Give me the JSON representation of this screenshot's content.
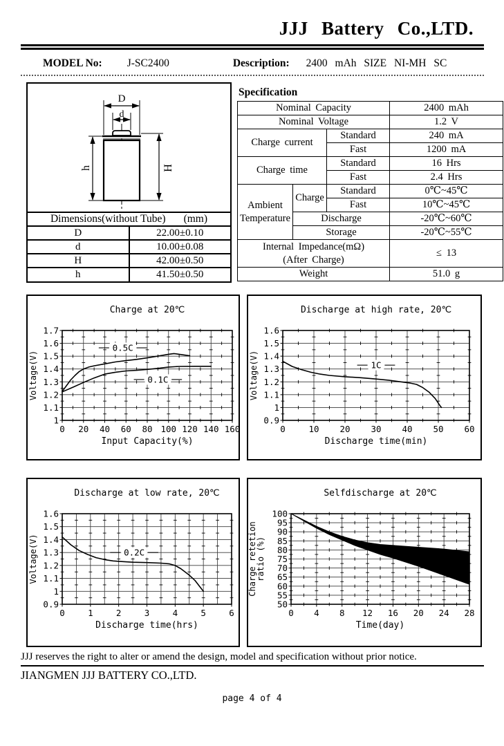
{
  "header": {
    "company": "JJJ Battery Co.,LTD.",
    "model_label": "MODEL No:",
    "model_value": "J-SC2400",
    "description_label": "Description:",
    "description_value": "2400 mAh SIZE NI-MH SC"
  },
  "dimensions": {
    "title": "Dimensions(without Tube)",
    "unit": "(mm)",
    "rows": [
      {
        "label": "D",
        "value": "22.00±0.10"
      },
      {
        "label": "d",
        "value": "10.00±0.08"
      },
      {
        "label": "H",
        "value": "42.00±0.50"
      },
      {
        "label": "h",
        "value": "41.50±0.50"
      }
    ],
    "diagram": {
      "top_diameter_label": "D",
      "button_diameter_label": "d",
      "left_height_label": "h",
      "right_height_label": "H"
    }
  },
  "specification": {
    "title": "Specification",
    "nominal_capacity": {
      "label": "Nominal Capacity",
      "value": "2400 mAh"
    },
    "nominal_voltage": {
      "label": "Nominal Voltage",
      "value": "1.2 V"
    },
    "charge_current": {
      "label": "Charge current",
      "standard_label": "Standard",
      "standard_value": "240 mA",
      "fast_label": "Fast",
      "fast_value": "1200 mA"
    },
    "charge_time": {
      "label": "Charge time",
      "standard_label": "Standard",
      "standard_value": "16 Hrs",
      "fast_label": "Fast",
      "fast_value": "2.4 Hrs"
    },
    "ambient_temperature": {
      "label": "Ambient Temperature",
      "charge_label": "Charge",
      "charge_standard_label": "Standard",
      "charge_standard_value": "0℃~45℃",
      "charge_fast_label": "Fast",
      "charge_fast_value": "10℃~45℃",
      "discharge_label": "Discharge",
      "discharge_value": "-20℃~60℃",
      "storage_label": "Storage",
      "storage_value": "-20℃~55℃"
    },
    "internal_impedance": {
      "label_line1": "Internal Impedance(mΩ)",
      "label_line2": "(After Charge)",
      "value": "≤ 13"
    },
    "weight": {
      "label": "Weight",
      "value": "51.0 g"
    }
  },
  "chart_data": [
    {
      "type": "line",
      "title": "Charge at 20℃",
      "xlabel": "Input Capacity(%)",
      "ylabel": [
        "Voltage(V)"
      ],
      "xlim": [
        0,
        160
      ],
      "ylim": [
        1.0,
        1.7
      ],
      "grid": true,
      "x_grid": [
        20,
        40,
        60,
        80,
        100,
        120,
        140
      ],
      "y_grid": [
        1.1,
        1.2,
        1.3,
        1.4,
        1.5,
        1.6
      ],
      "x_ticks": [
        {
          "v": 0,
          "label": "0"
        },
        {
          "v": 20,
          "label": "20"
        },
        {
          "v": 40,
          "label": "40"
        },
        {
          "v": 60,
          "label": "60"
        },
        {
          "v": 80,
          "label": "80"
        },
        {
          "v": 100,
          "label": "100"
        },
        {
          "v": 120,
          "label": "120"
        },
        {
          "v": 140,
          "label": "140"
        },
        {
          "v": 160,
          "label": "160"
        }
      ],
      "y_ticks": [
        {
          "v": 1.7,
          "label": "1.7"
        },
        {
          "v": 1.6,
          "label": "1.6"
        },
        {
          "v": 1.5,
          "label": "1.5"
        },
        {
          "v": 1.4,
          "label": "1.4"
        },
        {
          "v": 1.3,
          "label": "1.3"
        },
        {
          "v": 1.2,
          "label": "1.2"
        },
        {
          "v": 1.1,
          "label": "1.1"
        },
        {
          "v": 1.0,
          "label": "1"
        }
      ],
      "x_minor": 10,
      "y_minor": 0.05,
      "series": [
        {
          "name": "0.5C",
          "points": [
            [
              0,
              1.225
            ],
            [
              4,
              1.27
            ],
            [
              8,
              1.315
            ],
            [
              12,
              1.35
            ],
            [
              16,
              1.38
            ],
            [
              20,
              1.4
            ],
            [
              25,
              1.415
            ],
            [
              30,
              1.425
            ],
            [
              40,
              1.44
            ],
            [
              50,
              1.455
            ],
            [
              60,
              1.465
            ],
            [
              70,
              1.475
            ],
            [
              80,
              1.487
            ],
            [
              90,
              1.5
            ],
            [
              100,
              1.515
            ],
            [
              105,
              1.52
            ],
            [
              110,
              1.515
            ],
            [
              120,
              1.503
            ]
          ]
        },
        {
          "name": "0.1C",
          "points": [
            [
              0,
              1.222
            ],
            [
              10,
              1.258
            ],
            [
              20,
              1.295
            ],
            [
              30,
              1.33
            ],
            [
              40,
              1.36
            ],
            [
              50,
              1.375
            ],
            [
              60,
              1.385
            ],
            [
              70,
              1.39
            ],
            [
              80,
              1.397
            ],
            [
              90,
              1.405
            ],
            [
              100,
              1.415
            ],
            [
              110,
              1.42
            ],
            [
              125,
              1.421
            ],
            [
              140,
              1.421
            ]
          ]
        }
      ],
      "annotations": [
        {
          "text": "0.5C",
          "x": 57,
          "y": 1.565,
          "leader": true
        },
        {
          "text": "0.1C",
          "x": 90,
          "y": 1.318,
          "leader": true
        }
      ]
    },
    {
      "type": "line",
      "title": "Discharge at high rate, 20℃",
      "xlabel": "Discharge time(min)",
      "ylabel": [
        "Voltage(V)"
      ],
      "xlim": [
        0,
        60
      ],
      "ylim": [
        0.9,
        1.6
      ],
      "grid": true,
      "x_grid": [
        10,
        20,
        30,
        40,
        50
      ],
      "y_grid": [
        1.0,
        1.1,
        1.2,
        1.3,
        1.4,
        1.5
      ],
      "x_ticks": [
        {
          "v": 0,
          "label": "0"
        },
        {
          "v": 10,
          "label": "10"
        },
        {
          "v": 20,
          "label": "20"
        },
        {
          "v": 30,
          "label": "30"
        },
        {
          "v": 40,
          "label": "40"
        },
        {
          "v": 50,
          "label": "50"
        },
        {
          "v": 60,
          "label": "60"
        }
      ],
      "y_ticks": [
        {
          "v": 1.6,
          "label": "1.6"
        },
        {
          "v": 1.5,
          "label": "1.5"
        },
        {
          "v": 1.4,
          "label": "1.4"
        },
        {
          "v": 1.3,
          "label": "1.3"
        },
        {
          "v": 1.2,
          "label": "1.2"
        },
        {
          "v": 1.1,
          "label": "1.1"
        },
        {
          "v": 1.0,
          "label": "1"
        },
        {
          "v": 0.9,
          "label": "0.9"
        }
      ],
      "x_minor": 5,
      "y_minor": 0.05,
      "series": [
        {
          "name": "1C",
          "points": [
            [
              0,
              1.36
            ],
            [
              3,
              1.32
            ],
            [
              6,
              1.295
            ],
            [
              9,
              1.275
            ],
            [
              12,
              1.26
            ],
            [
              15,
              1.25
            ],
            [
              20,
              1.24
            ],
            [
              25,
              1.232
            ],
            [
              30,
              1.222
            ],
            [
              34,
              1.213
            ],
            [
              38,
              1.2
            ],
            [
              41,
              1.19
            ],
            [
              43,
              1.18
            ],
            [
              45,
              1.155
            ],
            [
              47,
              1.12
            ],
            [
              49,
              1.07
            ],
            [
              50.5,
              1.015
            ],
            [
              51,
              1.0
            ]
          ]
        }
      ],
      "annotations": [
        {
          "text": "1C",
          "x": 30,
          "y": 1.33,
          "leader": true
        }
      ]
    },
    {
      "type": "line",
      "title": "Discharge at low rate, 20℃",
      "xlabel": "Discharge time(hrs)",
      "ylabel": [
        "Voltage(V)"
      ],
      "xlim": [
        0,
        6
      ],
      "ylim": [
        0.9,
        1.6
      ],
      "grid": true,
      "x_grid": [
        0.5,
        1,
        1.5,
        2,
        2.5,
        3,
        3.5,
        4,
        4.5,
        5,
        5.5
      ],
      "y_grid": [
        1.0,
        1.1,
        1.2,
        1.3,
        1.4,
        1.5
      ],
      "x_ticks": [
        {
          "v": 0,
          "label": "0"
        },
        {
          "v": 1,
          "label": "1"
        },
        {
          "v": 2,
          "label": "2"
        },
        {
          "v": 3,
          "label": "3"
        },
        {
          "v": 4,
          "label": "4"
        },
        {
          "v": 5,
          "label": "5"
        },
        {
          "v": 6,
          "label": "6"
        }
      ],
      "y_ticks": [
        {
          "v": 1.6,
          "label": "1.6"
        },
        {
          "v": 1.5,
          "label": "1.5"
        },
        {
          "v": 1.4,
          "label": "1.4"
        },
        {
          "v": 1.3,
          "label": "1.3"
        },
        {
          "v": 1.2,
          "label": "1.2"
        },
        {
          "v": 1.1,
          "label": "1.1"
        },
        {
          "v": 1.0,
          "label": "1"
        },
        {
          "v": 0.9,
          "label": "0.9"
        }
      ],
      "x_minor": null,
      "y_minor": 0.05,
      "series": [
        {
          "name": "0.2C",
          "points": [
            [
              0,
              1.42
            ],
            [
              0.3,
              1.36
            ],
            [
              0.6,
              1.315
            ],
            [
              0.9,
              1.285
            ],
            [
              1.2,
              1.26
            ],
            [
              1.5,
              1.245
            ],
            [
              1.8,
              1.235
            ],
            [
              2.1,
              1.23
            ],
            [
              2.5,
              1.225
            ],
            [
              3,
              1.222
            ],
            [
              3.5,
              1.218
            ],
            [
              3.8,
              1.212
            ],
            [
              4,
              1.2
            ],
            [
              4.2,
              1.175
            ],
            [
              4.5,
              1.125
            ],
            [
              4.7,
              1.085
            ],
            [
              5,
              1.0
            ]
          ]
        }
      ],
      "annotations": [
        {
          "text": "0.2C",
          "x": 2.55,
          "y": 1.3,
          "leader": true
        }
      ]
    },
    {
      "type": "area",
      "title": "Selfdischarge at 20℃",
      "xlabel": "Time(day)",
      "ylabel": [
        "Charge retetion",
        "ratio (%)"
      ],
      "xlim": [
        0,
        28
      ],
      "ylim": [
        50,
        100
      ],
      "grid": true,
      "x_grid": [
        4,
        8,
        12,
        16,
        20,
        24
      ],
      "y_grid": [
        55,
        60,
        65,
        70,
        75,
        80,
        85,
        90,
        95
      ],
      "x_ticks": [
        {
          "v": 0,
          "label": "0"
        },
        {
          "v": 4,
          "label": "4"
        },
        {
          "v": 8,
          "label": "8"
        },
        {
          "v": 12,
          "label": "12"
        },
        {
          "v": 16,
          "label": "16"
        },
        {
          "v": 20,
          "label": "20"
        },
        {
          "v": 24,
          "label": "24"
        },
        {
          "v": 28,
          "label": "28"
        }
      ],
      "y_ticks": [
        {
          "v": 100,
          "label": "100"
        },
        {
          "v": 95,
          "label": "95"
        },
        {
          "v": 90,
          "label": "90"
        },
        {
          "v": 85,
          "label": "85"
        },
        {
          "v": 80,
          "label": "80"
        },
        {
          "v": 75,
          "label": "75"
        },
        {
          "v": 70,
          "label": "70"
        },
        {
          "v": 65,
          "label": "65"
        },
        {
          "v": 60,
          "label": "60"
        },
        {
          "v": 55,
          "label": "55"
        },
        {
          "v": 50,
          "label": "50"
        }
      ],
      "x_minor": 2,
      "y_minor": 2.5,
      "band": {
        "fill": "#000000",
        "upper": [
          [
            0,
            100
          ],
          [
            2,
            96.5
          ],
          [
            4,
            93
          ],
          [
            6,
            90
          ],
          [
            8,
            87.5
          ],
          [
            10,
            85.5
          ],
          [
            12,
            84
          ],
          [
            14,
            83
          ],
          [
            16,
            82.5
          ],
          [
            20,
            81.5
          ],
          [
            24,
            80.5
          ],
          [
            28,
            79
          ]
        ],
        "lower": [
          [
            0,
            100
          ],
          [
            2,
            96
          ],
          [
            4,
            92
          ],
          [
            6,
            88.5
          ],
          [
            8,
            85.5
          ],
          [
            10,
            82.5
          ],
          [
            12,
            80
          ],
          [
            14,
            77.5
          ],
          [
            16,
            75.5
          ],
          [
            20,
            71
          ],
          [
            24,
            66
          ],
          [
            28,
            61
          ]
        ]
      },
      "annotations": []
    }
  ],
  "footer": {
    "notice": "JJJ reserves the right to alter or amend the design, model and specification without prior notice.",
    "company": "JIANGMEN JJJ BATTERY CO.,LTD.",
    "page": "page 4 of 4"
  },
  "colors": {
    "ink": "#000000",
    "grid": "#3a3a3a",
    "paper": "#ffffff"
  }
}
